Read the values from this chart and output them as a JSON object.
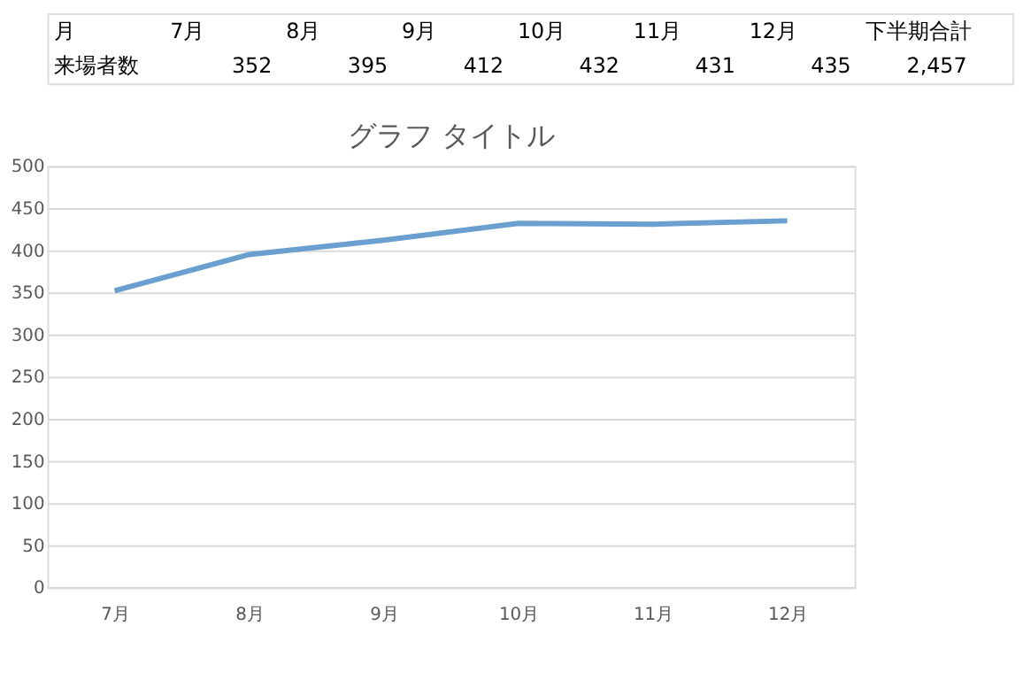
{
  "chart_data": {
    "type": "line",
    "title": "グラフ タイトル",
    "categories": [
      "7月",
      "8月",
      "9月",
      "10月",
      "11月",
      "12月"
    ],
    "series": [
      {
        "color": "#6a9fcf",
        "values": [
          352,
          395,
          412,
          432,
          431,
          435
        ]
      }
    ],
    "ylim": [
      0,
      500
    ],
    "yticks": [
      0,
      50,
      100,
      150,
      200,
      250,
      300,
      350,
      400,
      450,
      500
    ],
    "grid": "y",
    "marker": "none",
    "line_style": "solid",
    "annotations": [
      "月",
      "来場者数",
      "352",
      "395",
      "412",
      "432",
      "431",
      "435",
      "下半期合計",
      "2,457"
    ]
  }
}
